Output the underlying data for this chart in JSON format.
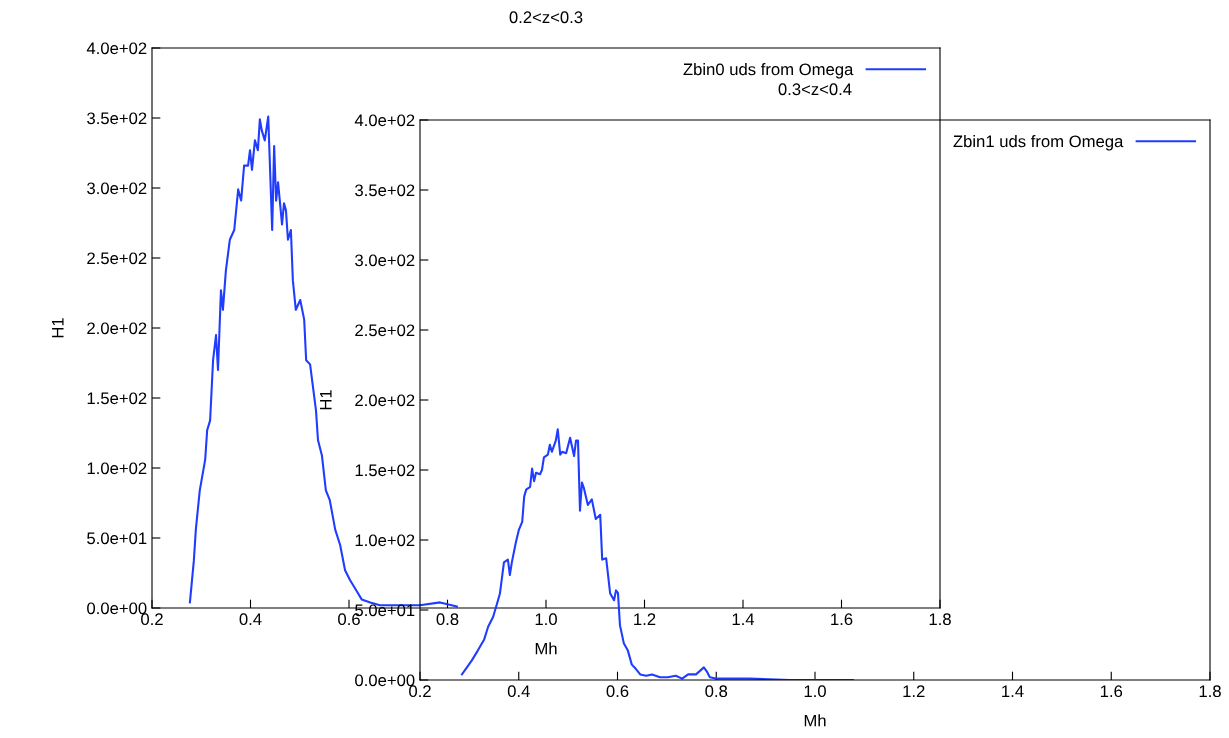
{
  "chart_data": [
    {
      "type": "line",
      "title": "0.2<z<0.3",
      "xlabel": "Mh",
      "ylabel": "H1",
      "legend": "top right",
      "xlim": [
        0.2,
        1.8
      ],
      "ylim": [
        0,
        400
      ],
      "xticks": [
        0.2,
        0.4,
        0.6,
        0.8,
        {
          "value": 1.0,
          "label": "1.0"
        },
        1.2,
        1.4,
        1.6,
        1.8
      ],
      "yticks": [
        {
          "value": 0,
          "label": "0.0e+00"
        },
        {
          "value": 50,
          "label": "5.0e+01"
        },
        {
          "value": 100,
          "label": "1.0e+02"
        },
        {
          "value": 150,
          "label": "1.5e+02"
        },
        {
          "value": 200,
          "label": "2.0e+02"
        },
        {
          "value": 250,
          "label": "2.5e+02"
        },
        {
          "value": 300,
          "label": "3.0e+02"
        },
        {
          "value": 350,
          "label": "3.5e+02"
        },
        {
          "value": 400,
          "label": "4.0e+02"
        }
      ],
      "series": [
        {
          "name": "Zbin0 uds from Omega",
          "color": "#1f3cff",
          "x": [
            0.277,
            0.285,
            0.289,
            0.297,
            0.308,
            0.312,
            0.318,
            0.324,
            0.33,
            0.334,
            0.34,
            0.344,
            0.35,
            0.358,
            0.367,
            0.375,
            0.381,
            0.387,
            0.395,
            0.399,
            0.403,
            0.409,
            0.415,
            0.419,
            0.423,
            0.429,
            0.436,
            0.444,
            0.448,
            0.452,
            0.456,
            0.464,
            0.468,
            0.472,
            0.476,
            0.482,
            0.486,
            0.492,
            0.501,
            0.509,
            0.513,
            0.521,
            0.525,
            0.533,
            0.537,
            0.545,
            0.553,
            0.561,
            0.572,
            0.582,
            0.592,
            0.602,
            0.614,
            0.626,
            0.643,
            0.663,
            0.704,
            0.744,
            0.785,
            0.819
          ],
          "values": [
            4,
            34,
            56,
            84,
            106,
            127,
            134,
            177,
            195,
            170,
            227,
            213,
            241,
            263,
            270,
            299,
            291,
            316,
            316,
            327,
            313,
            334,
            327,
            349,
            341,
            334,
            351,
            270,
            330,
            291,
            304,
            274,
            289,
            284,
            263,
            270,
            234,
            213,
            220,
            206,
            177,
            174,
            163,
            141,
            120,
            109,
            84,
            77,
            56,
            45,
            27,
            20,
            13,
            6,
            4,
            2,
            2,
            2,
            4,
            1
          ]
        }
      ]
    },
    {
      "type": "line",
      "title": "0.3<z<0.4",
      "xlabel": "Mh",
      "ylabel": "H1",
      "legend": "top right",
      "xlim": [
        0.2,
        1.8
      ],
      "ylim": [
        0,
        400
      ],
      "xticks": [
        0.2,
        0.4,
        0.6,
        0.8,
        {
          "value": 1.0,
          "label": "1.0"
        },
        1.2,
        1.4,
        1.6,
        1.8
      ],
      "yticks": [
        {
          "value": 0,
          "label": "0.0e+00"
        },
        {
          "value": 50,
          "label": "5.0e+01"
        },
        {
          "value": 100,
          "label": "1.0e+02"
        },
        {
          "value": 150,
          "label": "1.5e+02"
        },
        {
          "value": 200,
          "label": "2.0e+02"
        },
        {
          "value": 250,
          "label": "2.5e+02"
        },
        {
          "value": 300,
          "label": "3.0e+02"
        },
        {
          "value": 350,
          "label": "3.5e+02"
        },
        {
          "value": 400,
          "label": "4.0e+02"
        }
      ],
      "series": [
        {
          "name": "Zbin1 uds from Omega",
          "color": "#1f3cff",
          "x": [
            0.285,
            0.295,
            0.305,
            0.317,
            0.33,
            0.338,
            0.348,
            0.358,
            0.362,
            0.37,
            0.378,
            0.382,
            0.386,
            0.394,
            0.4,
            0.407,
            0.411,
            0.415,
            0.423,
            0.427,
            0.431,
            0.435,
            0.443,
            0.447,
            0.451,
            0.459,
            0.463,
            0.467,
            0.475,
            0.479,
            0.484,
            0.488,
            0.496,
            0.504,
            0.512,
            0.516,
            0.52,
            0.524,
            0.528,
            0.532,
            0.54,
            0.548,
            0.556,
            0.565,
            0.569,
            0.577,
            0.585,
            0.593,
            0.597,
            0.601,
            0.605,
            0.613,
            0.621,
            0.629,
            0.637,
            0.646,
            0.658,
            0.67,
            0.686,
            0.702,
            0.718,
            0.731,
            0.743,
            0.759,
            0.775,
            0.781,
            0.787,
            0.799,
            0.828,
            0.868,
            0.949,
            1.077
          ],
          "values": [
            4,
            9,
            14,
            21,
            29,
            38,
            45,
            57,
            62,
            84,
            86,
            75,
            84,
            98,
            107,
            113,
            131,
            136,
            138,
            151,
            142,
            148,
            147,
            150,
            159,
            161,
            168,
            163,
            171,
            179,
            161,
            163,
            162,
            173,
            160,
            171,
            171,
            121,
            141,
            137,
            125,
            129,
            115,
            118,
            86,
            87,
            62,
            57,
            64,
            62,
            39,
            26,
            21,
            11,
            8,
            4,
            3,
            4,
            2,
            2,
            3,
            1,
            4,
            4,
            9,
            6,
            2,
            1,
            1,
            1,
            0,
            0
          ]
        }
      ]
    }
  ]
}
